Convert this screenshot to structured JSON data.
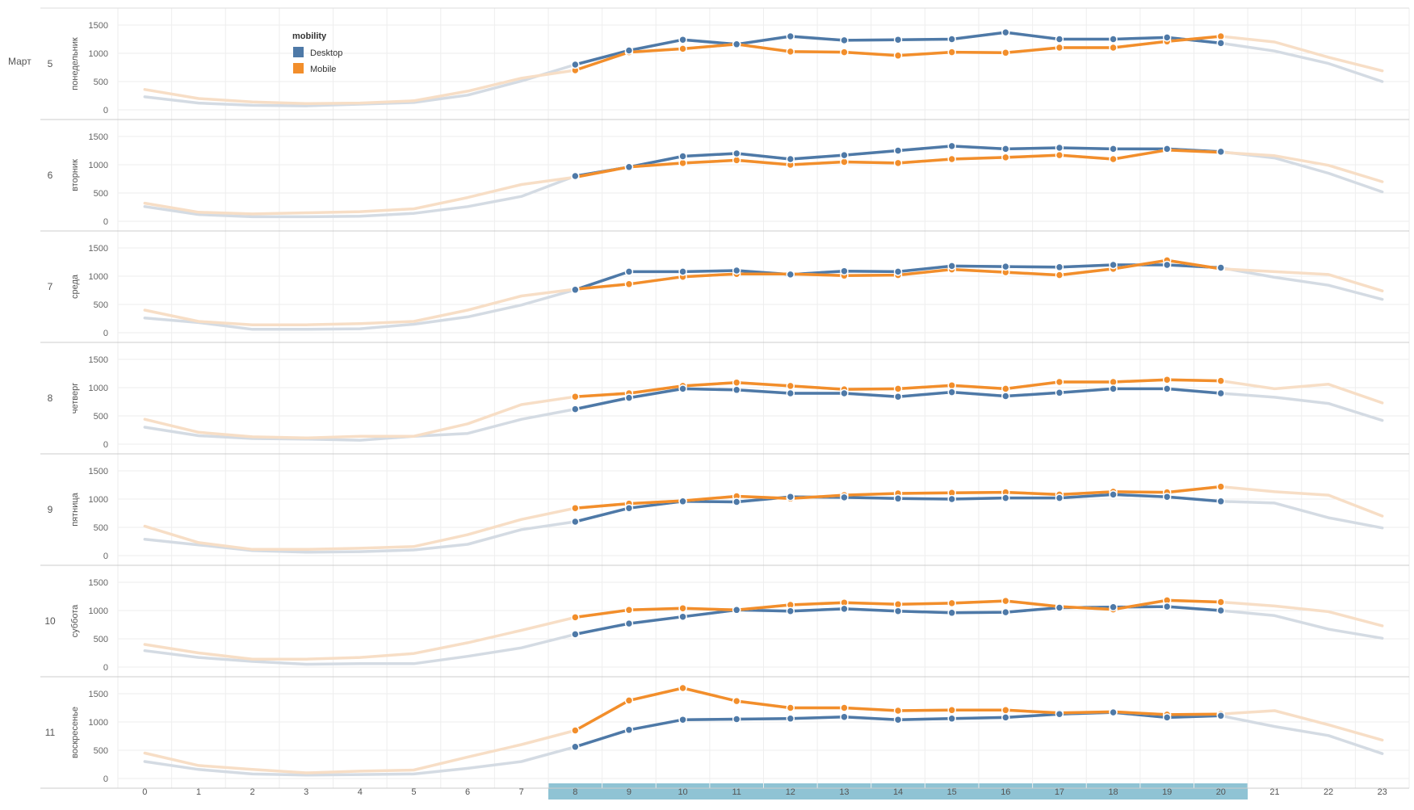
{
  "month_label": "Март",
  "legend": {
    "title": "mobility",
    "items": [
      {
        "label": "Desktop",
        "color": "#4e79a7"
      },
      {
        "label": "Mobile",
        "color": "#f28e2b"
      }
    ]
  },
  "colors": {
    "desktop": "#4e79a7",
    "mobile": "#f28e2b",
    "desktop_faded": "#d4dbe3",
    "mobile_faded": "#f7dec6",
    "highlight_band": "#8fc3d4"
  },
  "chart_data": {
    "type": "line",
    "x": [
      0,
      1,
      2,
      3,
      4,
      5,
      6,
      7,
      8,
      9,
      10,
      11,
      12,
      13,
      14,
      15,
      16,
      17,
      18,
      19,
      20,
      21,
      22,
      23
    ],
    "highlighted_hours": [
      8,
      9,
      10,
      11,
      12,
      13,
      14,
      15,
      16,
      17,
      18,
      19,
      20
    ],
    "ylim": [
      0,
      1600
    ],
    "yticks": [
      0,
      500,
      1000,
      1500
    ],
    "grid": true,
    "legend_position": "top-left",
    "rows": [
      {
        "date": "5",
        "day": "понедельник",
        "desktop": [
          230,
          120,
          80,
          70,
          100,
          130,
          260,
          510,
          800,
          1050,
          1240,
          1160,
          1300,
          1230,
          1240,
          1250,
          1370,
          1250,
          1250,
          1280,
          1180,
          1040,
          820,
          500
        ],
        "mobile": [
          360,
          200,
          140,
          110,
          120,
          160,
          330,
          560,
          700,
          1020,
          1080,
          1160,
          1030,
          1020,
          960,
          1020,
          1010,
          1100,
          1100,
          1210,
          1300,
          1200,
          930,
          690
        ]
      },
      {
        "date": "6",
        "day": "вторник",
        "desktop": [
          260,
          120,
          80,
          80,
          90,
          140,
          260,
          440,
          800,
          960,
          1150,
          1200,
          1100,
          1170,
          1250,
          1330,
          1280,
          1300,
          1280,
          1280,
          1230,
          1120,
          850,
          520
        ],
        "mobile": [
          320,
          160,
          130,
          150,
          170,
          220,
          420,
          650,
          780,
          960,
          1030,
          1080,
          1000,
          1050,
          1030,
          1100,
          1130,
          1170,
          1100,
          1260,
          1220,
          1160,
          990,
          700
        ]
      },
      {
        "date": "7",
        "day": "среда",
        "desktop": [
          260,
          180,
          60,
          60,
          70,
          150,
          280,
          490,
          760,
          1080,
          1080,
          1100,
          1030,
          1090,
          1080,
          1180,
          1170,
          1160,
          1200,
          1200,
          1150,
          980,
          840,
          590
        ],
        "mobile": [
          400,
          200,
          140,
          140,
          160,
          200,
          400,
          650,
          770,
          860,
          990,
          1040,
          1040,
          1010,
          1020,
          1120,
          1070,
          1020,
          1130,
          1280,
          1130,
          1080,
          1030,
          740
        ]
      },
      {
        "date": "8",
        "day": "четверг",
        "desktop": [
          300,
          150,
          100,
          90,
          70,
          140,
          190,
          440,
          620,
          820,
          980,
          960,
          900,
          900,
          840,
          920,
          850,
          910,
          980,
          980,
          900,
          830,
          720,
          420
        ],
        "mobile": [
          440,
          210,
          130,
          110,
          140,
          140,
          360,
          700,
          840,
          900,
          1030,
          1090,
          1030,
          970,
          980,
          1040,
          980,
          1100,
          1100,
          1140,
          1120,
          980,
          1060,
          730
        ]
      },
      {
        "date": "9",
        "day": "пятница",
        "desktop": [
          290,
          190,
          90,
          60,
          70,
          100,
          200,
          460,
          600,
          840,
          960,
          950,
          1040,
          1030,
          1010,
          1000,
          1020,
          1020,
          1080,
          1040,
          960,
          930,
          670,
          490
        ],
        "mobile": [
          520,
          230,
          110,
          110,
          130,
          160,
          370,
          640,
          840,
          920,
          970,
          1050,
          1010,
          1070,
          1100,
          1110,
          1120,
          1080,
          1130,
          1120,
          1220,
          1130,
          1070,
          700
        ]
      },
      {
        "date": "10",
        "day": "суббота",
        "desktop": [
          290,
          170,
          100,
          50,
          60,
          60,
          190,
          340,
          580,
          770,
          890,
          1010,
          990,
          1030,
          990,
          960,
          970,
          1050,
          1060,
          1070,
          1000,
          910,
          670,
          510
        ],
        "mobile": [
          400,
          250,
          140,
          140,
          170,
          240,
          430,
          650,
          880,
          1010,
          1040,
          1010,
          1100,
          1140,
          1110,
          1130,
          1170,
          1070,
          1020,
          1180,
          1150,
          1080,
          980,
          730
        ]
      },
      {
        "date": "11",
        "day": "воскресенье",
        "desktop": [
          300,
          160,
          80,
          60,
          70,
          80,
          180,
          300,
          560,
          860,
          1040,
          1050,
          1060,
          1090,
          1040,
          1060,
          1080,
          1140,
          1170,
          1080,
          1110,
          920,
          760,
          440
        ],
        "mobile": [
          450,
          230,
          160,
          100,
          130,
          150,
          380,
          600,
          850,
          1380,
          1720,
          1370,
          1250,
          1250,
          1200,
          1210,
          1210,
          1160,
          1180,
          1130,
          1140,
          1200,
          950,
          680
        ]
      }
    ]
  }
}
